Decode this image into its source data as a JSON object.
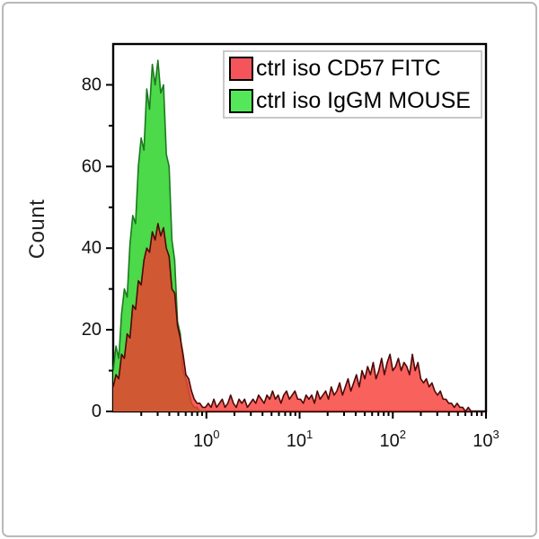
{
  "window": {
    "background": "#ffffff",
    "border_color": "#b9b9b9"
  },
  "chart_data": {
    "type": "area",
    "subtype": "flow-cytometry-histogram-overlay",
    "title": "",
    "xlabel": "",
    "ylabel": "Count",
    "xscale": "log",
    "xlim_log10": [
      -1,
      3
    ],
    "ylim": [
      0,
      90
    ],
    "grid": false,
    "axis_color": "#000000",
    "tick_label_color": "#111111",
    "yticks": [
      {
        "value": 0,
        "label": "0"
      },
      {
        "value": 20,
        "label": "20"
      },
      {
        "value": 40,
        "label": "40"
      },
      {
        "value": 60,
        "label": "60"
      },
      {
        "value": 80,
        "label": "80"
      }
    ],
    "y_minor_ticks": [
      10,
      30,
      50,
      70
    ],
    "xticks": [
      {
        "log10": 0,
        "label_base": "10",
        "label_exp": "0"
      },
      {
        "log10": 1,
        "label_base": "10",
        "label_exp": "1"
      },
      {
        "log10": 2,
        "label_base": "10",
        "label_exp": "2"
      },
      {
        "log10": 3,
        "label_base": "10",
        "label_exp": "3"
      }
    ],
    "x_minor_ticks_per_decade": [
      2,
      3,
      4,
      5,
      6,
      7,
      8,
      9
    ],
    "series": [
      {
        "name": "ctrl iso CD57 FITC",
        "draw_order": 1,
        "fill": "#f6352e",
        "fill_opacity": 0.78,
        "stroke": "#4d0808",
        "stroke_width": 1.6,
        "x_start_log10": -1,
        "x_step_log10": 0.03,
        "counts": [
          6,
          9,
          8,
          14,
          13,
          19,
          18,
          26,
          25,
          32,
          31,
          37,
          40,
          39,
          44,
          42,
          46,
          43,
          45,
          40,
          38,
          30,
          29,
          21,
          18,
          14,
          9,
          8,
          5,
          3,
          2,
          2,
          1,
          1,
          2,
          1,
          3,
          1,
          2,
          3,
          1,
          2,
          4,
          2,
          1,
          3,
          2,
          3,
          1,
          2,
          3,
          2,
          4,
          3,
          2,
          4,
          3,
          5,
          3,
          4,
          2,
          4,
          5,
          3,
          4,
          5,
          3,
          3,
          2,
          4,
          3,
          4,
          2,
          5,
          3,
          4,
          5,
          3,
          6,
          4,
          5,
          7,
          4,
          6,
          8,
          5,
          7,
          9,
          6,
          10,
          8,
          11,
          9,
          12,
          8,
          10,
          13,
          9,
          12,
          14,
          10,
          11,
          13,
          10,
          12,
          11,
          9,
          14,
          10,
          12,
          8,
          7,
          8,
          6,
          7,
          5,
          4,
          5,
          3,
          3,
          2,
          2,
          1,
          2,
          1,
          1,
          0,
          1,
          0,
          0,
          0,
          0,
          0,
          0
        ]
      },
      {
        "name": "ctrl iso IgGM MOUSE",
        "draw_order": 0,
        "fill": "#4cd94a",
        "fill_opacity": 1,
        "stroke": "#1a7a1e",
        "stroke_width": 1.6,
        "x_start_log10": -1,
        "x_step_log10": 0.03,
        "counts": [
          10,
          16,
          13,
          24,
          30,
          28,
          41,
          48,
          46,
          60,
          67,
          64,
          79,
          74,
          85,
          80,
          86,
          78,
          80,
          63,
          60,
          42,
          37,
          22,
          19,
          10,
          8,
          5,
          2,
          1,
          1,
          0,
          0,
          0
        ]
      }
    ],
    "legend": {
      "position": "top-right",
      "border_color": "#c9c9c9",
      "entries": [
        {
          "label": "ctrl iso CD57 FITC",
          "swatch_color": "#f5555a",
          "swatch_border": "#000000"
        },
        {
          "label": "ctrl iso IgGM MOUSE",
          "swatch_color": "#55e75a",
          "swatch_border": "#000000"
        }
      ]
    }
  }
}
